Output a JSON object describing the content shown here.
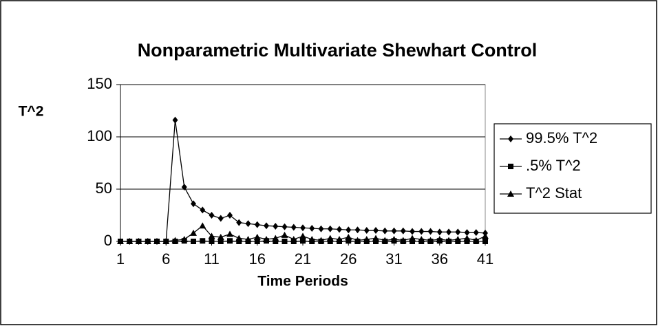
{
  "chart_data": {
    "type": "line",
    "title": "Nonparametric Multivariate Shewhart Control",
    "x_label": "Time Periods",
    "y_label": "T^2",
    "x": [
      1,
      2,
      3,
      4,
      5,
      6,
      7,
      8,
      9,
      10,
      11,
      12,
      13,
      14,
      15,
      16,
      17,
      18,
      19,
      20,
      21,
      22,
      23,
      24,
      25,
      26,
      27,
      28,
      29,
      30,
      31,
      32,
      33,
      34,
      35,
      36,
      37,
      38,
      39,
      40,
      41
    ],
    "series": [
      {
        "name": "99.5% T^2",
        "color": "#000000",
        "marker": "diamond",
        "values": [
          0,
          0,
          0,
          0,
          0,
          0,
          116,
          52,
          36,
          30,
          25,
          22,
          25,
          18,
          17,
          16,
          15,
          14.5,
          14,
          13.5,
          13,
          12.5,
          12,
          12,
          11.5,
          11,
          11,
          10.5,
          10.5,
          10,
          10,
          10,
          9.5,
          9.5,
          9.5,
          9,
          9,
          9,
          8.5,
          8.5,
          8
        ]
      },
      {
        "name": ".5% T^2",
        "color": "#000000",
        "marker": "square",
        "values": [
          0,
          0,
          0,
          0,
          0,
          0,
          0,
          0.5,
          0,
          0.5,
          0,
          0,
          0.5,
          0,
          0,
          0,
          0.5,
          0,
          0,
          0,
          0.5,
          0,
          0,
          0,
          0,
          0.5,
          0,
          0,
          0,
          0,
          0.5,
          0,
          0,
          0,
          0,
          0.5,
          0,
          0,
          0,
          0,
          0
        ]
      },
      {
        "name": "T^2 Stat",
        "color": "#000000",
        "marker": "triangle",
        "values": [
          0,
          0,
          0,
          0,
          0,
          0,
          1,
          2,
          8,
          15,
          5,
          4,
          7,
          3,
          2,
          4,
          2,
          3,
          6,
          2,
          5,
          2,
          1,
          3,
          2,
          4,
          1,
          2,
          3,
          1,
          2,
          1,
          3,
          2,
          1,
          2,
          1,
          2,
          3,
          1,
          5
        ]
      }
    ],
    "xlim": [
      1,
      41
    ],
    "xticks": [
      1,
      6,
      11,
      16,
      21,
      26,
      31,
      36,
      41
    ],
    "ylim": [
      0,
      150
    ],
    "yticks": [
      0,
      50,
      100,
      150
    ],
    "grid": true,
    "legend": "right"
  }
}
